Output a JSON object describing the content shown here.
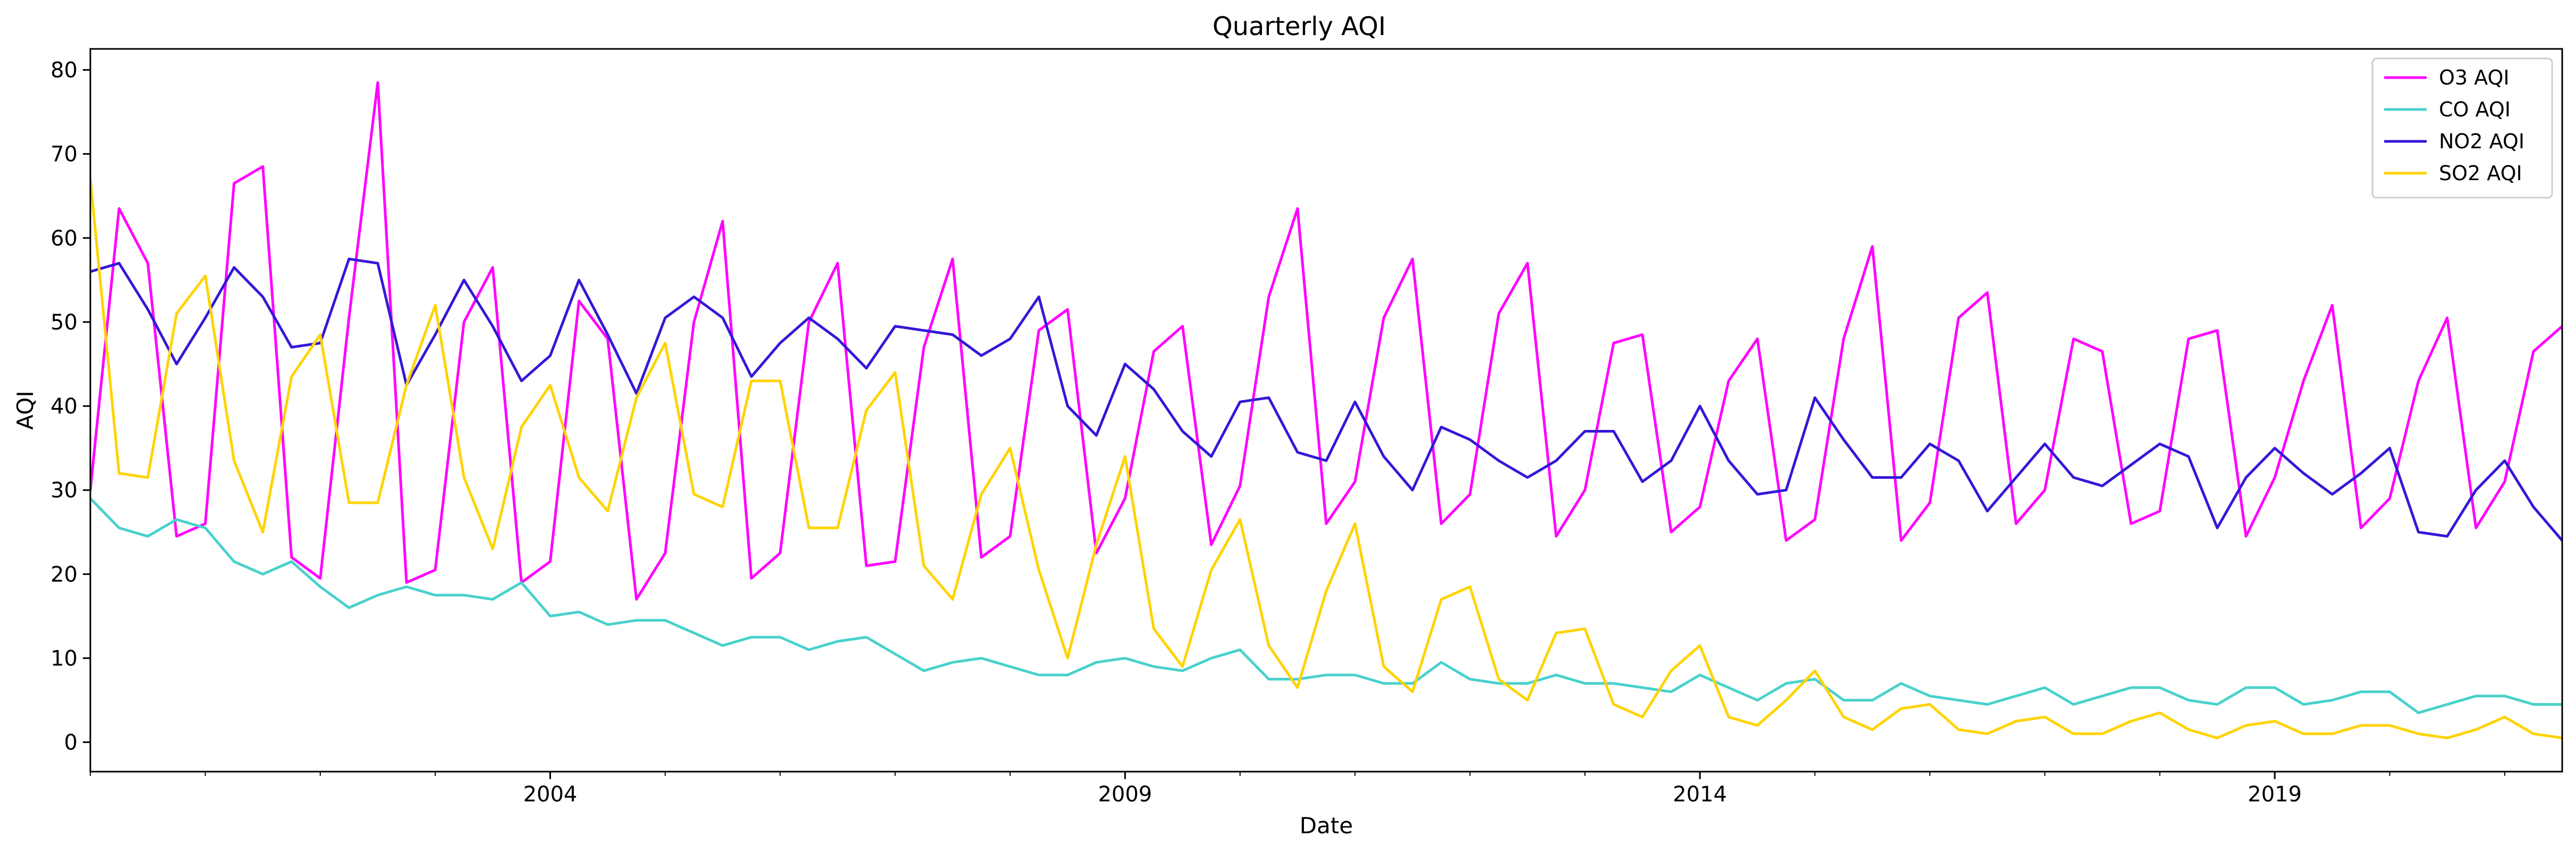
{
  "chart_data": {
    "type": "line",
    "title": "Quarterly AQI",
    "xlabel": "Date",
    "ylabel": "AQI",
    "xlim": [
      2000.0,
      2021.5
    ],
    "ylim": [
      -3.5,
      82.5
    ],
    "x_ticks": [
      2004,
      2009,
      2014,
      2019
    ],
    "y_ticks": [
      0,
      10,
      20,
      30,
      40,
      50,
      60,
      70,
      80
    ],
    "grid": false,
    "legend_position": "top-right",
    "x": [
      2000.0,
      2000.25,
      2000.5,
      2000.75,
      2001.0,
      2001.25,
      2001.5,
      2001.75,
      2002.0,
      2002.25,
      2002.5,
      2002.75,
      2003.0,
      2003.25,
      2003.5,
      2003.75,
      2004.0,
      2004.25,
      2004.5,
      2004.75,
      2005.0,
      2005.25,
      2005.5,
      2005.75,
      2006.0,
      2006.25,
      2006.5,
      2006.75,
      2007.0,
      2007.25,
      2007.5,
      2007.75,
      2008.0,
      2008.25,
      2008.5,
      2008.75,
      2009.0,
      2009.25,
      2009.5,
      2009.75,
      2010.0,
      2010.25,
      2010.5,
      2010.75,
      2011.0,
      2011.25,
      2011.5,
      2011.75,
      2012.0,
      2012.25,
      2012.5,
      2012.75,
      2013.0,
      2013.25,
      2013.5,
      2013.75,
      2014.0,
      2014.25,
      2014.5,
      2014.75,
      2015.0,
      2015.25,
      2015.5,
      2015.75,
      2016.0,
      2016.25,
      2016.5,
      2016.75,
      2017.0,
      2017.25,
      2017.5,
      2017.75,
      2018.0,
      2018.25,
      2018.5,
      2018.75,
      2019.0,
      2019.25,
      2019.5,
      2019.75,
      2020.0,
      2020.25,
      2020.5,
      2020.75,
      2021.0,
      2021.25,
      2021.5
    ],
    "series": [
      {
        "name": "O3 AQI",
        "color": "#ff00ff",
        "values": [
          30,
          63.5,
          57,
          24.5,
          26,
          66.5,
          68.5,
          22,
          19.5,
          50.5,
          78.5,
          19,
          20.5,
          50,
          56.5,
          19,
          21.5,
          52.5,
          48,
          17,
          22.5,
          50,
          62,
          19.5,
          22.5,
          50,
          57,
          21,
          21.5,
          47,
          57.5,
          22,
          24.5,
          49,
          51.5,
          22.5,
          29,
          46.5,
          49.5,
          23.5,
          30.5,
          53,
          63.5,
          26,
          31,
          50.5,
          57.5,
          26,
          29.5,
          51,
          57,
          24.5,
          30,
          47.5,
          48.5,
          25,
          28,
          43,
          48,
          24,
          26.5,
          48,
          59,
          24,
          28.5,
          50.5,
          53.5,
          26,
          30,
          48,
          46.5,
          26,
          27.5,
          48,
          49,
          24.5,
          31.5,
          43,
          52,
          25.5,
          29,
          43,
          50.5,
          25.5,
          31,
          46.5,
          49.5
        ]
      },
      {
        "name": "CO AQI",
        "color": "#48d1cc",
        "values": [
          29,
          25.5,
          24.5,
          26.5,
          25.5,
          21.5,
          20,
          21.5,
          18.5,
          16,
          17.5,
          18.5,
          17.5,
          17.5,
          17,
          19,
          15,
          15.5,
          14,
          14.5,
          14.5,
          13,
          11.5,
          12.5,
          12.5,
          11,
          12,
          12.5,
          10.5,
          8.5,
          9.5,
          10,
          9,
          8,
          8,
          9.5,
          10,
          9,
          8.5,
          10,
          11,
          7.5,
          7.5,
          8,
          8,
          7,
          7,
          9.5,
          7.5,
          7,
          7,
          8,
          7,
          7,
          6.5,
          6,
          8,
          6.5,
          5,
          7,
          7.5,
          5,
          5,
          7,
          5.5,
          5,
          4.5,
          5.5,
          6.5,
          4.5,
          5.5,
          6.5,
          6.5,
          5,
          4.5,
          6.5,
          6.5,
          4.5,
          5,
          6,
          6,
          3.5,
          4.5,
          5.5,
          5.5,
          4.5,
          4.5
        ]
      },
      {
        "name": "NO2 AQI",
        "color": "#3318d8",
        "values": [
          56,
          57,
          51.5,
          45,
          50.5,
          56.5,
          53,
          47,
          47.5,
          57.5,
          57,
          42.5,
          48.5,
          55,
          49.5,
          43,
          46,
          55,
          48.5,
          41.5,
          50.5,
          53,
          50.5,
          43.5,
          47.5,
          50.5,
          48,
          44.5,
          49.5,
          49,
          48.5,
          46,
          48,
          53,
          40,
          36.5,
          45,
          42,
          37,
          34,
          40.5,
          41,
          34.5,
          33.5,
          40.5,
          34,
          30,
          37.5,
          36,
          33.5,
          31.5,
          33.5,
          37,
          37,
          31,
          33.5,
          40,
          33.5,
          29.5,
          30,
          41,
          36,
          31.5,
          31.5,
          35.5,
          33.5,
          27.5,
          31.5,
          35.5,
          31.5,
          30.5,
          33,
          35.5,
          34,
          25.5,
          31.5,
          35,
          32,
          29.5,
          32,
          35,
          25,
          24.5,
          30,
          33.5,
          28,
          24
        ]
      },
      {
        "name": "SO2 AQI",
        "color": "#ffd300",
        "values": [
          67,
          32,
          31.5,
          51,
          55.5,
          33.5,
          25,
          43.5,
          48.5,
          28.5,
          28.5,
          42.5,
          52,
          31.5,
          23,
          37.5,
          42.5,
          31.5,
          27.5,
          41,
          47.5,
          29.5,
          28,
          43,
          43,
          25.5,
          25.5,
          39.5,
          44,
          21,
          17,
          29.5,
          35,
          20.5,
          10,
          23.5,
          34,
          13.5,
          9,
          20.5,
          26.5,
          11.5,
          6.5,
          18,
          26,
          9,
          6,
          17,
          18.5,
          7.5,
          5,
          13,
          13.5,
          4.5,
          3,
          8.5,
          11.5,
          3,
          2,
          5,
          8.5,
          3,
          1.5,
          4,
          4.5,
          1.5,
          1,
          2.5,
          3,
          1,
          1,
          2.5,
          3.5,
          1.5,
          0.5,
          2,
          2.5,
          1,
          1,
          2,
          2,
          1,
          0.5,
          1.5,
          3,
          1,
          0.5
        ]
      }
    ]
  }
}
